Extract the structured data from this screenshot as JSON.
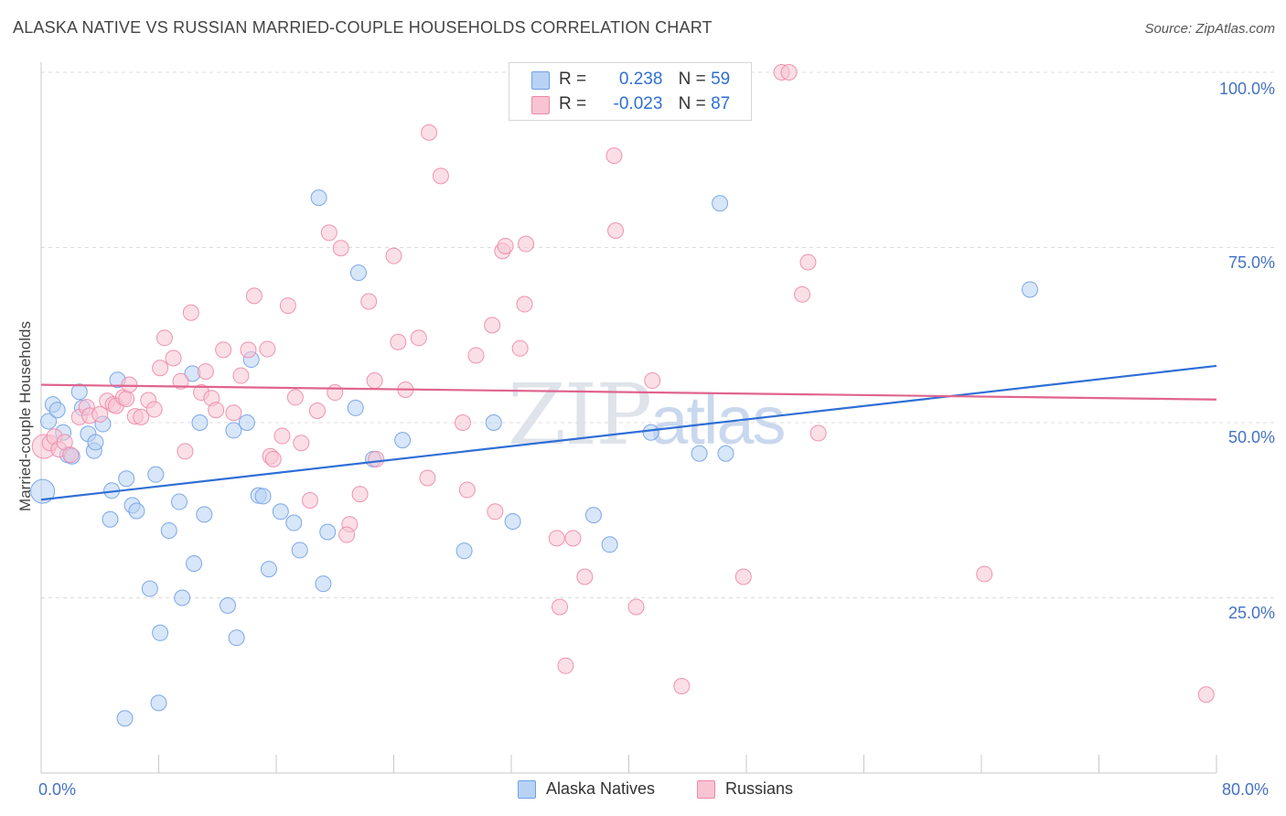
{
  "title": "ALASKA NATIVE VS RUSSIAN MARRIED-COUPLE HOUSEHOLDS CORRELATION CHART",
  "source": "Source: ZipAtlas.com",
  "watermark": {
    "zip": "ZIP",
    "atlas": "atlas"
  },
  "legend": {
    "rows": [
      {
        "r_label": "R =",
        "r_value": "0.238",
        "n_label": "N =",
        "n_value": "59",
        "color": "#aac8f0"
      },
      {
        "r_label": "R =",
        "r_value": "-0.023",
        "n_label": "N =",
        "n_value": "87",
        "color": "#f6b8cb"
      }
    ]
  },
  "bottom_legend": {
    "series1": "Alaska Natives",
    "series2": "Russians"
  },
  "chart_data": {
    "type": "scatter",
    "title": "ALASKA NATIVE VS RUSSIAN MARRIED-COUPLE HOUSEHOLDS CORRELATION CHART",
    "xlabel": "",
    "ylabel": "Married-couple Households",
    "xlim": [
      0,
      80
    ],
    "ylim": [
      0,
      100
    ],
    "x_tick_labels": [
      "0.0%",
      "80.0%"
    ],
    "y_tick_labels": [
      "25.0%",
      "50.0%",
      "75.0%",
      "100.0%"
    ],
    "y_ticks": [
      25,
      50,
      75,
      100
    ],
    "grid": true,
    "series": [
      {
        "name": "Alaska Natives",
        "color": "#6fa0e6",
        "fill": "#b8d2f4",
        "trend": {
          "x": [
            0,
            80
          ],
          "y": [
            39.0,
            58.1
          ]
        },
        "points": [
          [
            0.1,
            40.2
          ],
          [
            0.5,
            50.2
          ],
          [
            0.8,
            52.6
          ],
          [
            1.1,
            51.8
          ],
          [
            1.5,
            48.6
          ],
          [
            1.8,
            45.4
          ],
          [
            2.1,
            45.2
          ],
          [
            2.6,
            54.4
          ],
          [
            2.8,
            52.1
          ],
          [
            3.2,
            48.4
          ],
          [
            3.6,
            46.0
          ],
          [
            3.7,
            47.2
          ],
          [
            4.2,
            49.8
          ],
          [
            4.8,
            40.3
          ],
          [
            4.7,
            36.2
          ],
          [
            5.2,
            56.1
          ],
          [
            5.8,
            42.0
          ],
          [
            6.2,
            38.2
          ],
          [
            6.5,
            37.4
          ],
          [
            5.7,
            7.8
          ],
          [
            7.4,
            26.3
          ],
          [
            7.8,
            42.6
          ],
          [
            8.1,
            20.0
          ],
          [
            8.0,
            10.0
          ],
          [
            8.7,
            34.6
          ],
          [
            9.4,
            38.7
          ],
          [
            9.6,
            25.0
          ],
          [
            10.3,
            57.0
          ],
          [
            10.4,
            29.9
          ],
          [
            10.8,
            50.0
          ],
          [
            11.1,
            36.9
          ],
          [
            12.7,
            23.9
          ],
          [
            13.1,
            48.9
          ],
          [
            13.3,
            19.3
          ],
          [
            14.0,
            50.0
          ],
          [
            14.3,
            59.0
          ],
          [
            14.8,
            39.6
          ],
          [
            15.1,
            39.5
          ],
          [
            15.5,
            29.1
          ],
          [
            16.3,
            37.3
          ],
          [
            17.2,
            35.7
          ],
          [
            17.6,
            31.8
          ],
          [
            18.9,
            82.1
          ],
          [
            19.2,
            27.0
          ],
          [
            19.5,
            34.4
          ],
          [
            21.4,
            52.1
          ],
          [
            21.6,
            71.4
          ],
          [
            22.6,
            44.8
          ],
          [
            24.6,
            47.5
          ],
          [
            28.8,
            31.7
          ],
          [
            30.8,
            50.0
          ],
          [
            32.1,
            35.9
          ],
          [
            37.6,
            36.8
          ],
          [
            38.7,
            32.6
          ],
          [
            41.5,
            48.6
          ],
          [
            44.8,
            45.6
          ],
          [
            46.2,
            81.3
          ],
          [
            46.6,
            45.6
          ],
          [
            67.3,
            69.0
          ]
        ]
      },
      {
        "name": "Russians",
        "color": "#ee88a8",
        "fill": "#f8c4d4",
        "trend": {
          "x": [
            0,
            80
          ],
          "y": [
            55.4,
            53.3
          ]
        },
        "points": [
          [
            0.2,
            46.6
          ],
          [
            0.6,
            47.1
          ],
          [
            0.9,
            48.0
          ],
          [
            1.2,
            46.2
          ],
          [
            1.6,
            47.2
          ],
          [
            2.0,
            45.4
          ],
          [
            2.6,
            50.8
          ],
          [
            3.1,
            52.2
          ],
          [
            3.3,
            51.0
          ],
          [
            4.0,
            51.2
          ],
          [
            4.5,
            53.1
          ],
          [
            4.9,
            52.6
          ],
          [
            5.1,
            52.4
          ],
          [
            5.6,
            53.6
          ],
          [
            5.8,
            53.4
          ],
          [
            6.0,
            55.4
          ],
          [
            6.4,
            50.9
          ],
          [
            6.8,
            50.8
          ],
          [
            7.3,
            53.2
          ],
          [
            7.7,
            51.9
          ],
          [
            8.1,
            57.8
          ],
          [
            8.4,
            62.1
          ],
          [
            9.0,
            59.2
          ],
          [
            9.5,
            55.9
          ],
          [
            9.8,
            45.9
          ],
          [
            10.2,
            65.7
          ],
          [
            10.9,
            54.3
          ],
          [
            11.2,
            57.3
          ],
          [
            11.6,
            53.5
          ],
          [
            11.9,
            51.8
          ],
          [
            12.4,
            60.4
          ],
          [
            13.1,
            51.4
          ],
          [
            13.6,
            56.7
          ],
          [
            14.1,
            60.4
          ],
          [
            14.5,
            68.1
          ],
          [
            15.4,
            60.5
          ],
          [
            15.6,
            45.2
          ],
          [
            15.8,
            44.8
          ],
          [
            16.4,
            48.1
          ],
          [
            16.8,
            66.7
          ],
          [
            17.3,
            53.6
          ],
          [
            17.7,
            47.1
          ],
          [
            18.3,
            38.9
          ],
          [
            18.8,
            51.7
          ],
          [
            19.6,
            77.1
          ],
          [
            20.0,
            54.3
          ],
          [
            20.4,
            74.9
          ],
          [
            21.0,
            35.5
          ],
          [
            20.8,
            34.0
          ],
          [
            21.7,
            39.8
          ],
          [
            22.3,
            67.3
          ],
          [
            22.7,
            56.0
          ],
          [
            22.8,
            44.8
          ],
          [
            24.0,
            73.8
          ],
          [
            24.3,
            61.5
          ],
          [
            24.8,
            54.7
          ],
          [
            25.7,
            62.1
          ],
          [
            26.3,
            42.1
          ],
          [
            26.4,
            91.4
          ],
          [
            27.2,
            85.2
          ],
          [
            28.7,
            50.0
          ],
          [
            29.0,
            40.4
          ],
          [
            29.6,
            59.6
          ],
          [
            30.7,
            63.9
          ],
          [
            30.9,
            37.3
          ],
          [
            31.4,
            74.5
          ],
          [
            31.6,
            75.2
          ],
          [
            32.6,
            60.6
          ],
          [
            32.9,
            66.9
          ],
          [
            33.0,
            75.5
          ],
          [
            35.1,
            33.5
          ],
          [
            35.3,
            23.7
          ],
          [
            35.7,
            15.3
          ],
          [
            36.2,
            33.5
          ],
          [
            37.0,
            28.0
          ],
          [
            38.1,
            100.0
          ],
          [
            39.0,
            88.1
          ],
          [
            39.1,
            77.4
          ],
          [
            40.5,
            23.7
          ],
          [
            41.6,
            56.0
          ],
          [
            43.6,
            12.4
          ],
          [
            47.8,
            28.0
          ],
          [
            50.4,
            100.0
          ],
          [
            50.9,
            100.0
          ],
          [
            51.8,
            68.3
          ],
          [
            52.2,
            72.9
          ],
          [
            52.9,
            48.5
          ],
          [
            64.2,
            28.4
          ],
          [
            79.3,
            11.2
          ]
        ]
      }
    ]
  }
}
